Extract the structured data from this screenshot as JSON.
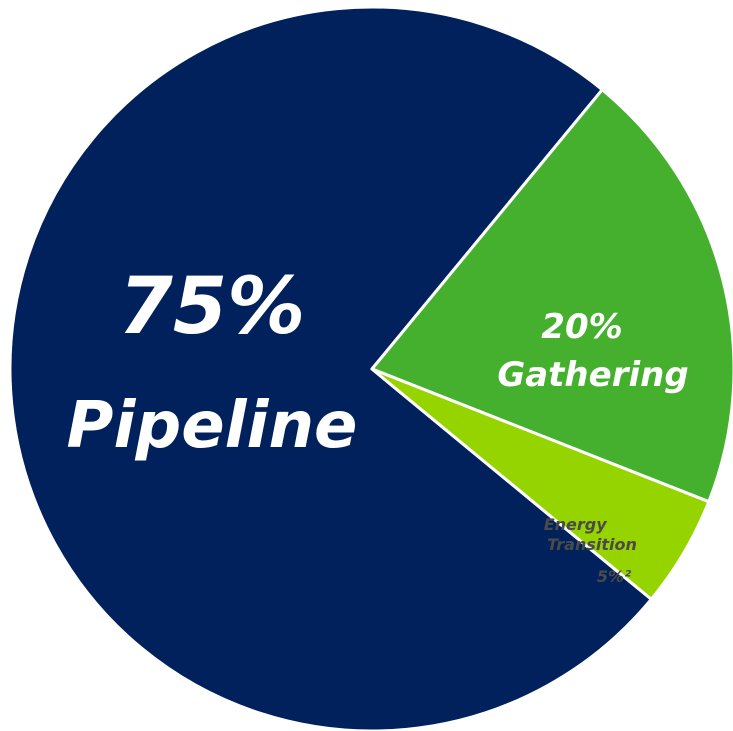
{
  "chart_data": {
    "type": "pie",
    "slices": [
      {
        "label": "Pipeline",
        "value": 75,
        "value_label": "75%",
        "color": "#00215B"
      },
      {
        "label": "Gathering",
        "value": 20,
        "value_label": "20%",
        "color": "#45B02E"
      },
      {
        "label": "Energy Transition",
        "value": 5,
        "value_label": "5%²",
        "color": "#96D400"
      }
    ],
    "label_colors": [
      "#FFFFFF",
      "#FFFFFF",
      "#4A4A4A"
    ]
  }
}
